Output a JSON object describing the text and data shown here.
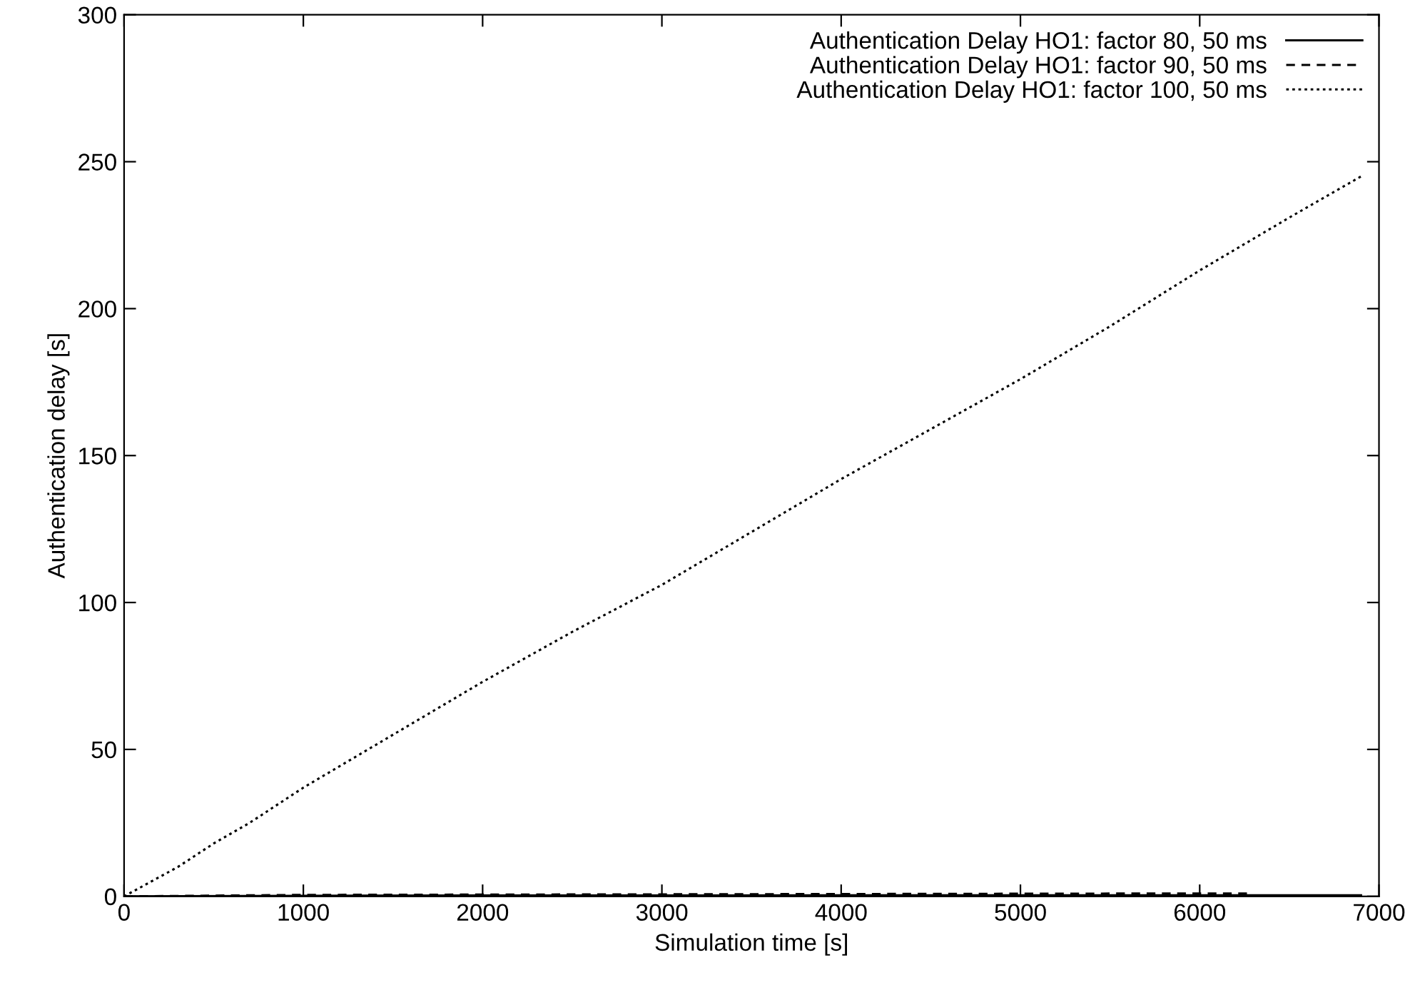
{
  "chart_data": {
    "type": "line",
    "xlabel": "Simulation time [s]",
    "ylabel": "Authentication delay [s]",
    "xlim": [
      0,
      7000
    ],
    "ylim": [
      0,
      300
    ],
    "xticks": [
      0,
      1000,
      2000,
      3000,
      4000,
      5000,
      6000,
      7000
    ],
    "yticks": [
      0,
      50,
      100,
      150,
      200,
      250,
      300
    ],
    "grid": false,
    "legend": "top right",
    "marker": "none",
    "series": [
      {
        "name": "Authentication Delay HO1: factor 80, 50 ms",
        "color": "#000000",
        "line_style": "solid",
        "x": [
          0,
          1000,
          2000,
          3000,
          4000,
          5000,
          6000,
          6900
        ],
        "values": [
          0,
          0.2,
          0.3,
          0.3,
          0.4,
          0.4,
          0.4,
          0.4
        ]
      },
      {
        "name": "Authentication Delay HO1: factor 90, 50 ms",
        "color": "#000000",
        "line_style": "dashed",
        "x": [
          0,
          1000,
          2000,
          3000,
          4000,
          5000,
          6000,
          6300
        ],
        "values": [
          0,
          0.5,
          0.6,
          0.7,
          0.8,
          0.9,
          1,
          1
        ]
      },
      {
        "name": "Authentication Delay HO1: factor 100, 50 ms",
        "color": "#000000",
        "line_style": "dotted",
        "x": [
          0,
          150,
          300,
          500,
          700,
          1000,
          1500,
          2000,
          2500,
          3000,
          3500,
          4000,
          4500,
          5000,
          5500,
          6000,
          6500,
          6900
        ],
        "values": [
          0,
          5,
          10,
          18,
          25,
          37,
          55,
          73,
          90,
          106,
          124,
          142,
          159,
          176,
          194,
          213,
          231,
          245
        ]
      }
    ]
  }
}
